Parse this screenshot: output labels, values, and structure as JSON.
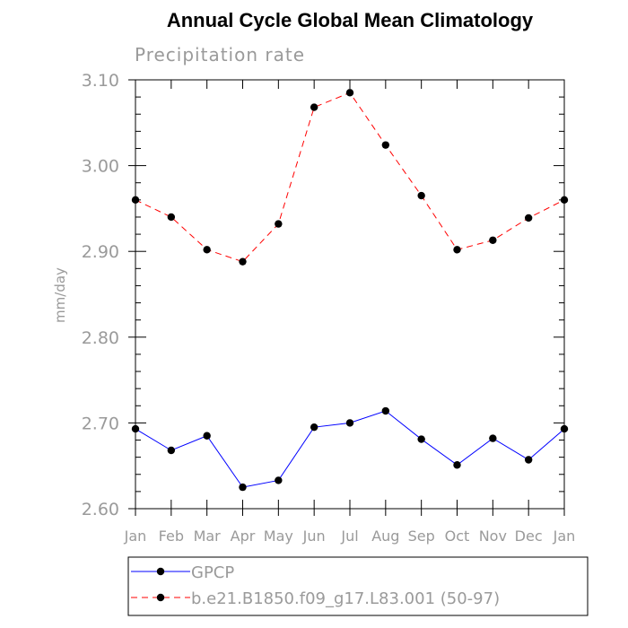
{
  "chart_data": {
    "type": "line",
    "title": "Annual Cycle Global Mean Climatology",
    "subtitle": "Precipitation rate",
    "xlabel": "",
    "ylabel": "mm/day",
    "categories": [
      "Jan",
      "Feb",
      "Mar",
      "Apr",
      "May",
      "Jun",
      "Jul",
      "Aug",
      "Sep",
      "Oct",
      "Nov",
      "Dec",
      "Jan"
    ],
    "ylim": [
      2.6,
      3.1
    ],
    "yticks": [
      "2.60",
      "2.70",
      "2.80",
      "2.90",
      "3.00",
      "3.10"
    ],
    "grid": false,
    "legend_position": "bottom",
    "series": [
      {
        "name": "GPCP",
        "color": "#0000ff",
        "dash": "solid",
        "values": [
          2.693,
          2.668,
          2.685,
          2.625,
          2.633,
          2.695,
          2.7,
          2.714,
          2.681,
          2.651,
          2.682,
          2.657,
          2.693
        ]
      },
      {
        "name": "b.e21.B1850.f09_g17.L83.001 (50-97)",
        "color": "#ff0000",
        "dash": "dashed",
        "values": [
          2.96,
          2.94,
          2.902,
          2.888,
          2.932,
          3.068,
          3.085,
          3.024,
          2.965,
          2.902,
          2.913,
          2.939,
          2.96
        ]
      }
    ]
  }
}
